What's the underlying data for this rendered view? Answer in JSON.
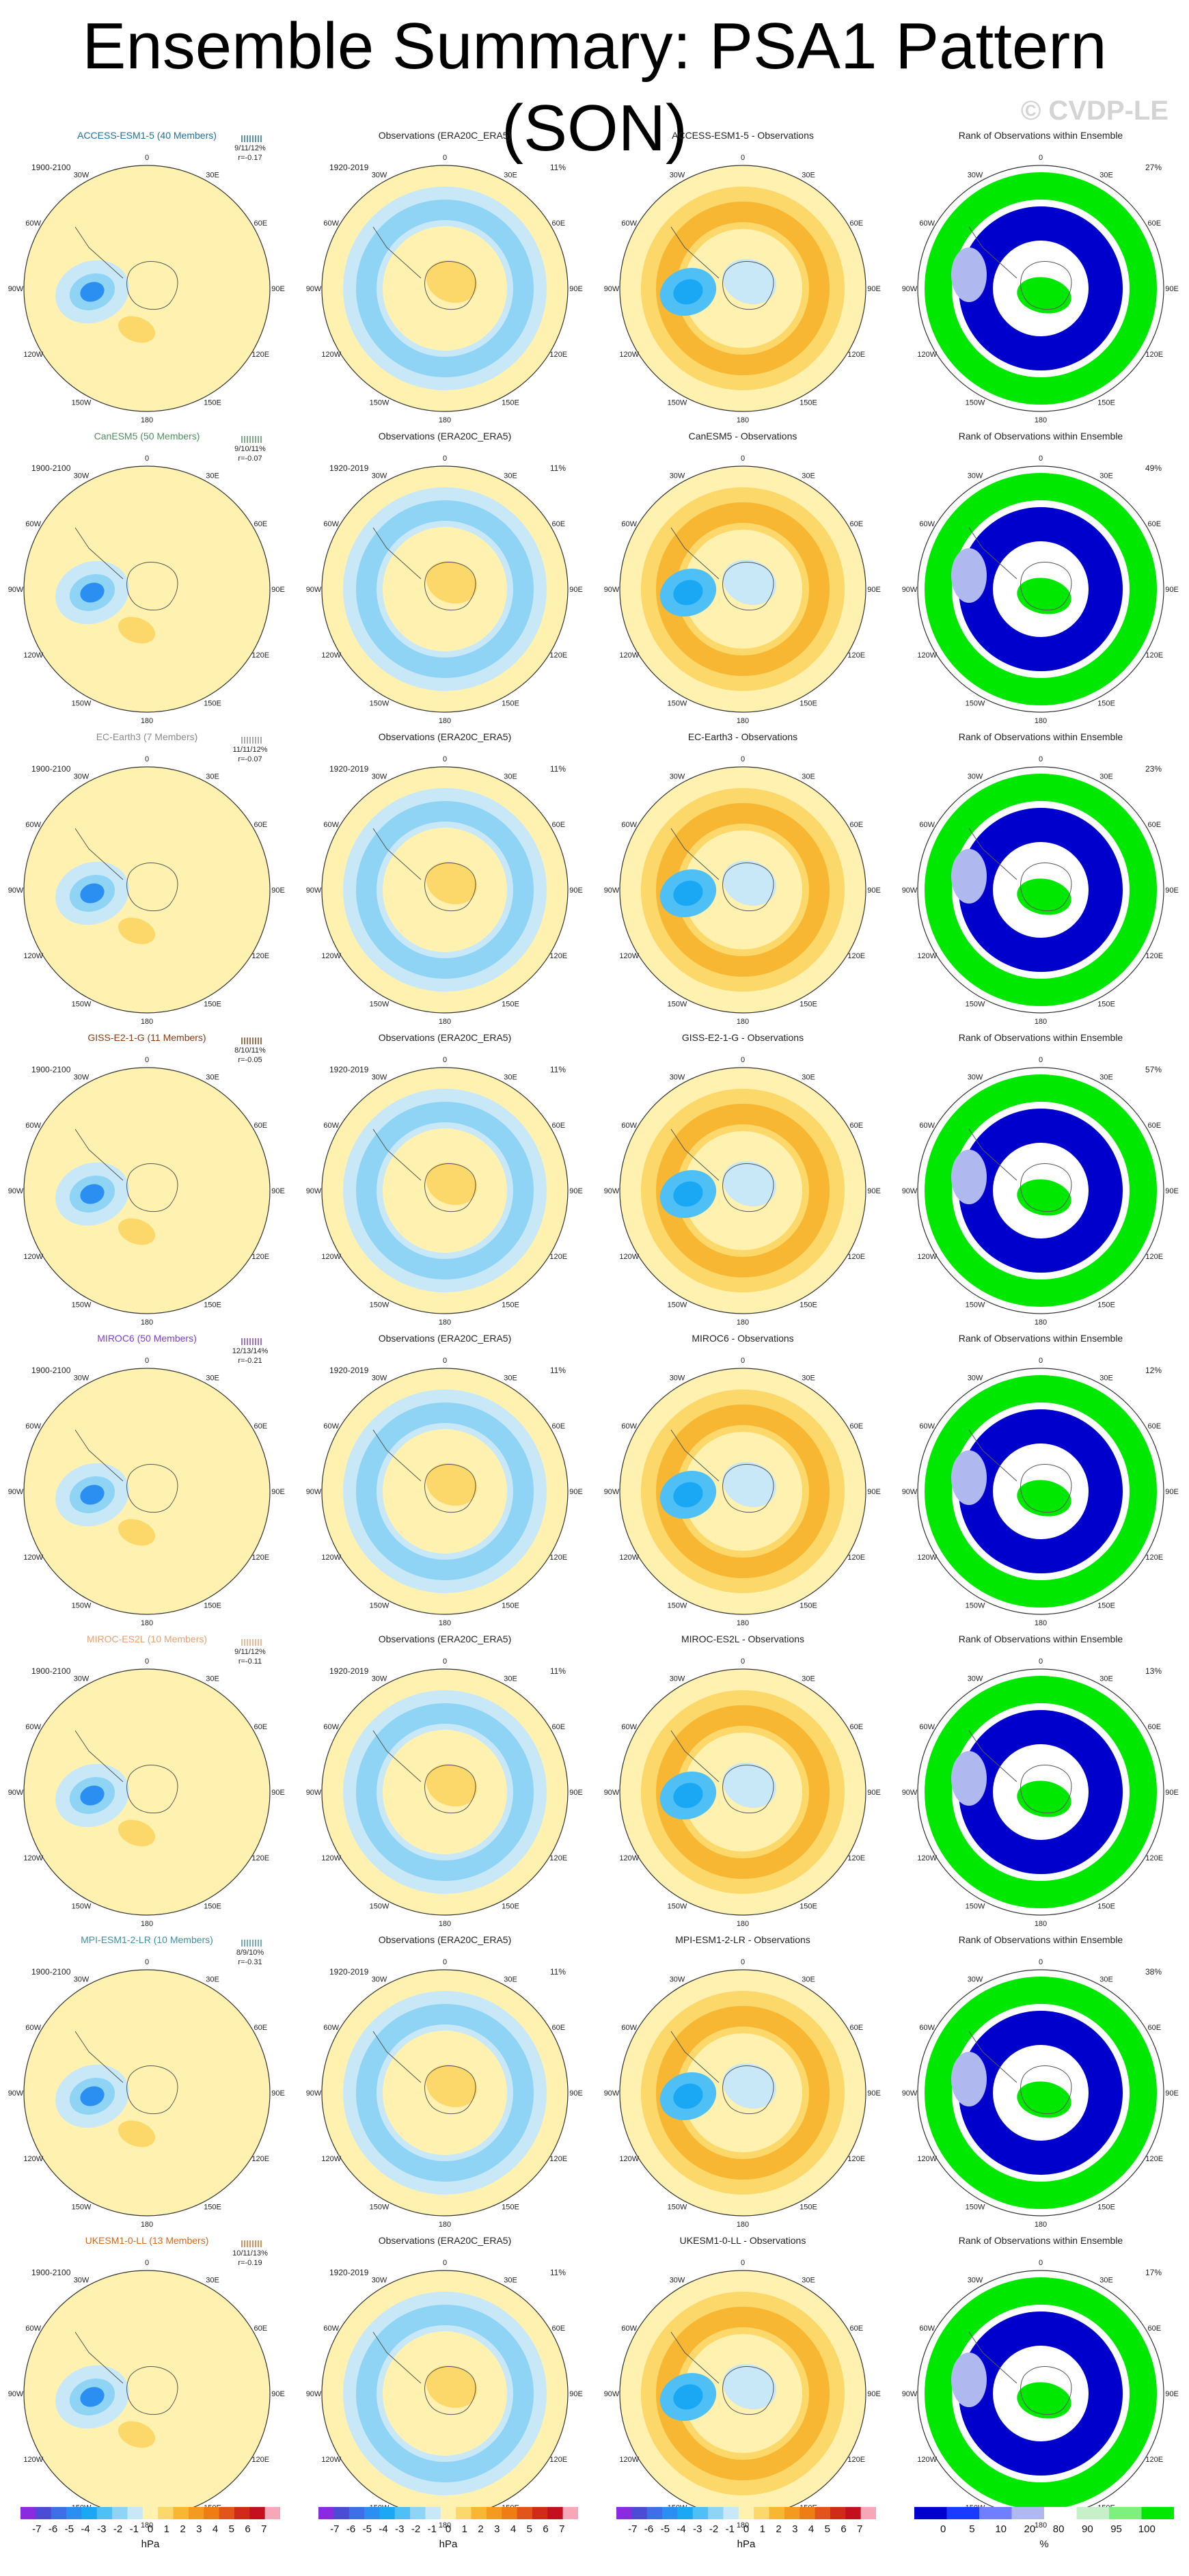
{
  "title": "Ensemble Summary: PSA1 Pattern (SON)",
  "watermark": "© CVDP-LE",
  "obs_title": "Observations (ERA20C_ERA5)",
  "obs_years": "1920-2019",
  "obs_pct": "11%",
  "rank_title": "Rank of Observations within Ensemble",
  "model_years": "1900-2100",
  "lon_labels": [
    "0",
    "30E",
    "60E",
    "90E",
    "120E",
    "150E",
    "180",
    "150W",
    "120W",
    "90W",
    "60W",
    "30W"
  ],
  "rows": [
    {
      "model": "ACCESS-ESM1-5 (40 Members)",
      "color": "#1f6f9f",
      "stats1": "9/11/12%",
      "stats2": "r=-0.17",
      "diff": "ACCESS-ESM1-5 - Observations",
      "rank_pct": "27%"
    },
    {
      "model": "CanESM5 (50 Members)",
      "color": "#4f8f5f",
      "stats1": "9/10/11%",
      "stats2": "r=-0.07",
      "diff": "CanESM5 - Observations",
      "rank_pct": "49%"
    },
    {
      "model": "EC-Earth3 (7 Members)",
      "color": "#8a8a8a",
      "stats1": "11/11/12%",
      "stats2": "r=-0.07",
      "diff": "EC-Earth3 - Observations",
      "rank_pct": "23%"
    },
    {
      "model": "GISS-E2-1-G (11 Members)",
      "color": "#8b3a0f",
      "stats1": "8/10/11%",
      "stats2": "r=-0.05",
      "diff": "GISS-E2-1-G - Observations",
      "rank_pct": "57%"
    },
    {
      "model": "MIROC6 (50 Members)",
      "color": "#7a3fd1",
      "stats1": "12/13/14%",
      "stats2": "r=-0.21",
      "diff": "MIROC6 - Observations",
      "rank_pct": "12%"
    },
    {
      "model": "MIROC-ES2L (10 Members)",
      "color": "#e8a070",
      "stats1": "9/11/12%",
      "stats2": "r=-0.11",
      "diff": "MIROC-ES2L - Observations",
      "rank_pct": "13%"
    },
    {
      "model": "MPI-ESM1-2-LR (10 Members)",
      "color": "#3f8fa0",
      "stats1": "8/9/10%",
      "stats2": "r=-0.31",
      "diff": "MPI-ESM1-2-LR - Observations",
      "rank_pct": "38%"
    },
    {
      "model": "UKESM1-0-LL (13 Members)",
      "color": "#d2691e",
      "stats1": "10/11/13%",
      "stats2": "r=-0.19",
      "diff": "UKESM1-0-LL - Observations",
      "rank_pct": "17%"
    }
  ],
  "hpa_colorbar": {
    "ticks": [
      "-7",
      "-6",
      "-5",
      "-4",
      "-3",
      "-2",
      "-1",
      "0",
      "1",
      "2",
      "3",
      "4",
      "5",
      "6",
      "7"
    ],
    "unit": "hPa",
    "colors": [
      "#8a2be2",
      "#4b4bd6",
      "#3f6fe8",
      "#2a8ff0",
      "#1aa8f5",
      "#4fc0f5",
      "#8fd4f5",
      "#c8e8f8",
      "#fff2b0",
      "#fcd76a",
      "#f7b733",
      "#f39a1f",
      "#ee7d14",
      "#e3541a",
      "#d12a1a",
      "#c40f1f",
      "#f7a8b8"
    ]
  },
  "pct_colorbar": {
    "ticks": [
      "0",
      "5",
      "10",
      "20",
      "80",
      "90",
      "95",
      "100"
    ],
    "unit": "%",
    "colors": [
      "#0000cd",
      "#1a3aff",
      "#6f7fff",
      "#b0b8f0",
      "#ffffff",
      "#c8f0c8",
      "#7ef07e",
      "#00e800"
    ]
  }
}
